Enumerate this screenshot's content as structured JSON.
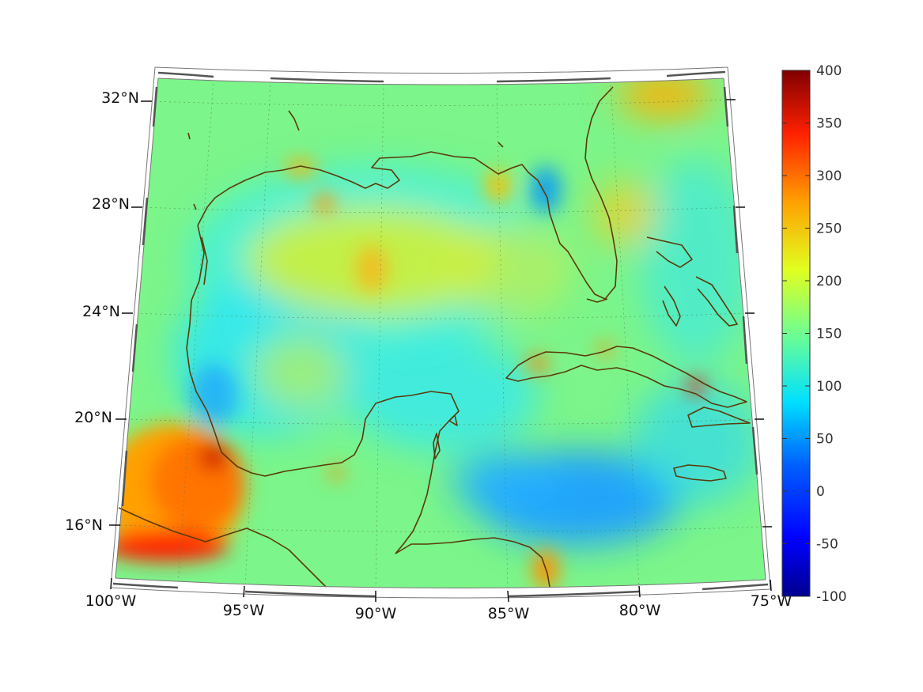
{
  "map": {
    "region": "Gulf of Mexico and Caribbean",
    "projection": "conic",
    "grid_lines": "dotted",
    "coastline_color": "#5a3a0a",
    "colormap": "jet",
    "lon_labels": [
      "100°W",
      "95°W",
      "90°W",
      "85°W",
      "80°W",
      "75°W"
    ],
    "lat_labels": [
      "32°N",
      "28°N",
      "24°N",
      "20°N",
      "16°N"
    ],
    "lon_range": [
      -100,
      -75
    ],
    "lat_range": [
      14,
      33
    ]
  },
  "colorbar": {
    "ticks": [
      "400",
      "350",
      "300",
      "250",
      "200",
      "150",
      "100",
      "50",
      "0",
      "-50",
      "-100"
    ],
    "range": [
      -100,
      400
    ],
    "colors": [
      "#00008f",
      "#0000ff",
      "#0080ff",
      "#00ffff",
      "#80ff80",
      "#ffff00",
      "#ff8000",
      "#ff0000",
      "#800000"
    ]
  },
  "chart_data": {
    "type": "heatmap",
    "xlabel": "",
    "ylabel": "",
    "xlim": [
      -100,
      -75
    ],
    "ylim": [
      14,
      33
    ],
    "clim": [
      -100,
      400
    ],
    "x_ticks": [
      "100°W",
      "95°W",
      "90°W",
      "85°W",
      "80°W",
      "75°W"
    ],
    "y_ticks": [
      "32°N",
      "28°N",
      "24°N",
      "20°N",
      "16°N"
    ],
    "colorbar_ticks": [
      400,
      350,
      300,
      250,
      200,
      150,
      100,
      50,
      0,
      -50,
      -100
    ]
  }
}
